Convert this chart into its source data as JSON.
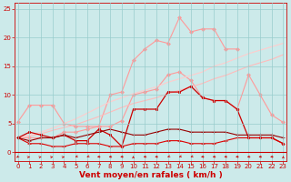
{
  "x": [
    0,
    1,
    2,
    3,
    4,
    5,
    6,
    7,
    8,
    9,
    10,
    11,
    12,
    13,
    14,
    15,
    16,
    17,
    18,
    19,
    20,
    21,
    22,
    23
  ],
  "series": [
    {
      "label": "line_pink_top",
      "color": "#ff9999",
      "lw": 0.8,
      "marker": "D",
      "markersize": 2.0,
      "y": [
        5.3,
        8.2,
        8.2,
        8.2,
        5.0,
        4.5,
        4.5,
        4.5,
        10.0,
        10.5,
        16.0,
        18.0,
        19.5,
        19.0,
        23.5,
        21.0,
        21.5,
        21.5,
        18.0,
        18.0,
        null,
        null,
        null,
        null
      ]
    },
    {
      "label": "line_pink_mid",
      "color": "#ff9999",
      "lw": 0.8,
      "marker": "D",
      "markersize": 2.0,
      "y": [
        2.5,
        2.5,
        2.5,
        2.5,
        3.5,
        3.5,
        4.0,
        4.5,
        4.5,
        5.5,
        10.0,
        10.5,
        11.0,
        13.5,
        14.0,
        12.5,
        9.5,
        9.0,
        9.0,
        7.5,
        13.5,
        10.0,
        6.5,
        5.2
      ]
    },
    {
      "label": "line_lt1",
      "color": "#ffbbbb",
      "lw": 0.8,
      "marker": null,
      "markersize": 0,
      "y": [
        2.5,
        2.8,
        3.2,
        3.8,
        4.3,
        4.8,
        5.5,
        6.2,
        7.0,
        7.8,
        8.5,
        9.0,
        9.5,
        10.2,
        10.8,
        11.4,
        12.0,
        12.8,
        13.4,
        14.2,
        15.0,
        15.6,
        16.2,
        17.0
      ]
    },
    {
      "label": "line_lt2",
      "color": "#ffcccc",
      "lw": 0.8,
      "marker": null,
      "markersize": 0,
      "y": [
        2.5,
        3.0,
        3.5,
        4.2,
        5.0,
        5.8,
        6.8,
        7.8,
        8.8,
        9.5,
        10.2,
        10.8,
        11.4,
        12.2,
        12.8,
        13.4,
        14.0,
        15.0,
        15.6,
        16.4,
        17.2,
        17.8,
        18.4,
        19.0
      ]
    },
    {
      "label": "line_red_main",
      "color": "#cc0000",
      "lw": 0.9,
      "marker": "s",
      "markersize": 2.0,
      "y": [
        2.5,
        3.5,
        3.0,
        2.5,
        3.0,
        2.0,
        2.0,
        4.0,
        3.0,
        1.0,
        7.5,
        7.5,
        7.5,
        10.5,
        10.5,
        11.5,
        9.5,
        9.0,
        9.0,
        7.5,
        2.5,
        2.5,
        2.5,
        1.5
      ]
    },
    {
      "label": "line_red_low",
      "color": "#dd0000",
      "lw": 0.8,
      "marker": "+",
      "markersize": 2.5,
      "y": [
        2.5,
        1.5,
        1.5,
        1.0,
        1.0,
        1.5,
        1.5,
        1.5,
        1.0,
        1.0,
        1.5,
        1.5,
        1.5,
        2.0,
        2.0,
        1.5,
        1.5,
        1.5,
        2.0,
        2.5,
        2.5,
        2.5,
        2.5,
        1.5
      ]
    },
    {
      "label": "line_dark_red",
      "color": "#990000",
      "lw": 0.8,
      "marker": "+",
      "markersize": 2.5,
      "y": [
        2.5,
        2.0,
        2.5,
        2.5,
        3.0,
        2.5,
        3.0,
        3.5,
        4.0,
        3.5,
        3.0,
        3.0,
        3.5,
        4.0,
        4.0,
        3.5,
        3.5,
        3.5,
        3.5,
        3.0,
        3.0,
        3.0,
        3.0,
        2.5
      ]
    }
  ],
  "xlabel": "Vent moyen/en rafales ( km/h )",
  "xlim": [
    -0.3,
    23.3
  ],
  "ylim": [
    -1.5,
    26
  ],
  "yticks": [
    0,
    5,
    10,
    15,
    20,
    25
  ],
  "xticks": [
    0,
    1,
    2,
    3,
    4,
    5,
    6,
    7,
    8,
    9,
    10,
    11,
    12,
    13,
    14,
    15,
    16,
    17,
    18,
    19,
    20,
    21,
    22,
    23
  ],
  "bg_color": "#cceaea",
  "grid_color": "#99cccc",
  "axis_color": "#cc0000",
  "label_color": "#cc0000",
  "tick_color": "#cc0000",
  "xlabel_fontsize": 6.5,
  "tick_fontsize": 5.0,
  "figsize": [
    3.2,
    2.0
  ],
  "dpi": 100
}
